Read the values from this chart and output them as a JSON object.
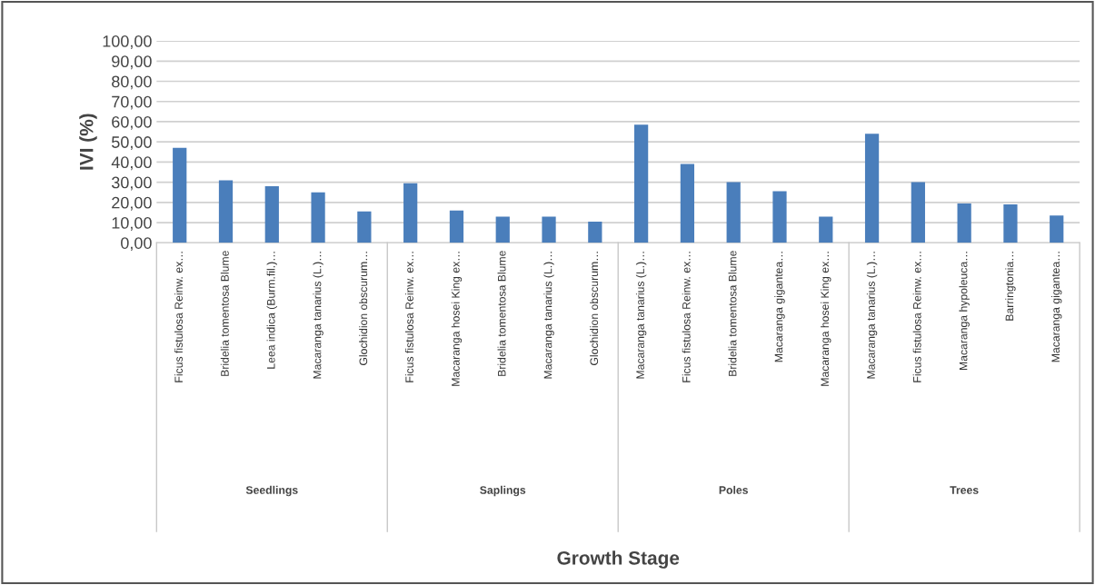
{
  "chart_data": {
    "type": "bar",
    "ylabel": "IVI (%)",
    "categories": [
      "Ficus fistulosa Reinw. ex…",
      "Bridelia tomentosa Blume",
      "Leea indica (Burm.fil.)…",
      "Macaranga tanarius (L.)…",
      "Glochidion obscurum…",
      "Ficus fistulosa Reinw. ex…",
      "Macaranga hosei King ex…",
      "Bridelia tomentosa Blume",
      "Macaranga tanarius (L.)…",
      "Glochidion obscurum…",
      "Macaranga tanarius (L.)…",
      "Ficus fistulosa Reinw. ex…",
      "Bridelia tomentosa Blume",
      "Macaranga gigantea…",
      "Macaranga hosei King ex…",
      "Macaranga tanarius (L.)…",
      "Ficus fistulosa Reinw. ex…",
      "Macaranga hypoleuca…",
      "Barringtonia…",
      "Macaranga gigantea…"
    ],
    "values": [
      47,
      31,
      28,
      25,
      15.5,
      29.5,
      16,
      13,
      13,
      10.5,
      58.5,
      39,
      30,
      25.5,
      13,
      54,
      30,
      19.5,
      19,
      13.5
    ],
    "color": "#4a7ebb",
    "annotations": [
      "Seedlings",
      "Saplings",
      "Poles",
      "Trees",
      "Growth Stage"
    ],
    "ylim": [
      0,
      100
    ],
    "yticks": [
      {
        "value": 0,
        "label": "0,00"
      },
      {
        "value": 10,
        "label": "10,00"
      },
      {
        "value": 20,
        "label": "20,00"
      },
      {
        "value": 30,
        "label": "30,00"
      },
      {
        "value": 40,
        "label": "40,00"
      },
      {
        "value": 50,
        "label": "50,00"
      },
      {
        "value": 60,
        "label": "60,00"
      },
      {
        "value": 70,
        "label": "70,00"
      },
      {
        "value": 80,
        "label": "80,00"
      },
      {
        "value": 90,
        "label": "90,00"
      },
      {
        "value": 100,
        "label": "100,00"
      }
    ],
    "grid": "y"
  }
}
